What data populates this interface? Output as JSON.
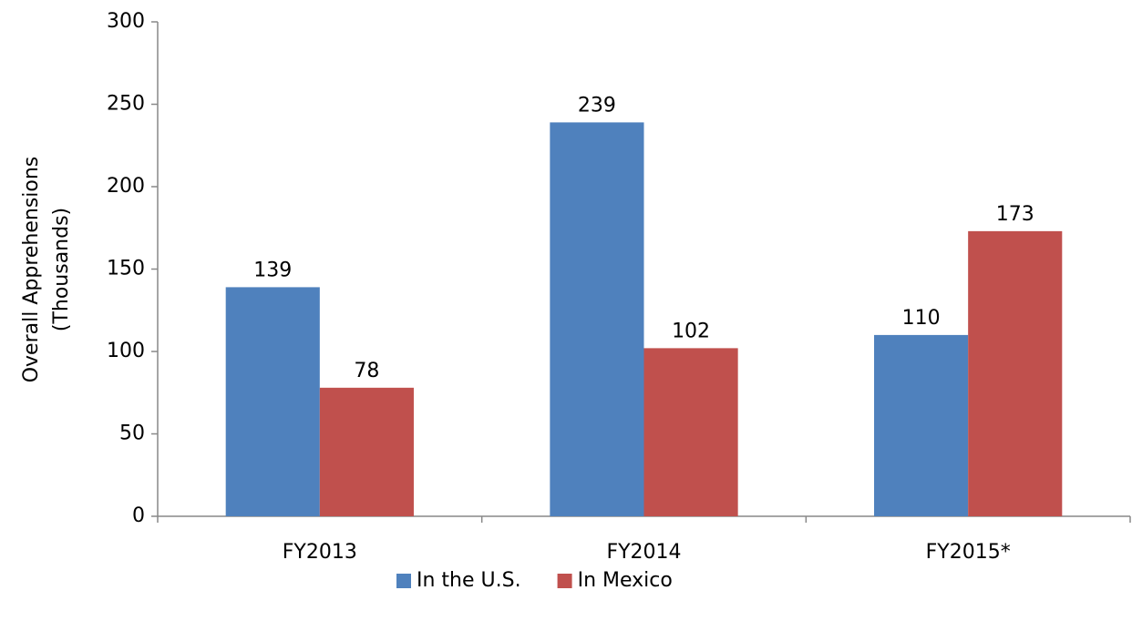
{
  "chart_data": {
    "type": "bar",
    "ylabel": [
      "Overall Apprehensions",
      "(Thousands)"
    ],
    "categories": [
      "FY2013",
      "FY2014",
      "FY2015*"
    ],
    "series": [
      {
        "name": "In the U.S.",
        "color": "#4f81bd",
        "values": [
          139,
          239,
          110
        ]
      },
      {
        "name": "In Mexico",
        "color": "#c0504d",
        "values": [
          78,
          102,
          173
        ]
      }
    ],
    "ylim": [
      0,
      300
    ],
    "yticks": [
      0,
      50,
      100,
      150,
      200,
      250,
      300
    ],
    "grid": false,
    "legend": "bottom"
  }
}
